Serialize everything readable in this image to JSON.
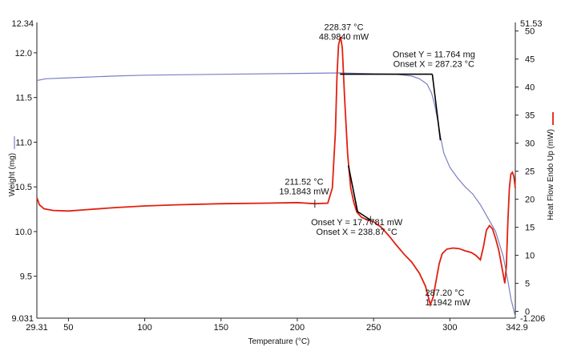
{
  "chart_data": {
    "type": "line",
    "xlabel": "Temperature (°C)",
    "xlim": [
      29.31,
      342.9
    ],
    "x_ticks": [
      50,
      100,
      150,
      200,
      250,
      300
    ],
    "x_min_label": "29.31",
    "x_max_label": "342.9",
    "left_axis": {
      "label": "Weight (mg)",
      "ylim": [
        9.031,
        12.34
      ],
      "ticks": [
        9.5,
        10.0,
        10.5,
        11.0,
        11.5,
        12.0
      ],
      "tick_labels": [
        "9.5",
        "10.0",
        "10.5",
        "11.0",
        "11.5",
        "12.0"
      ],
      "min_label": "9.031",
      "max_label": "12.34"
    },
    "right_axis": {
      "label": "Heat Flow Endo Up (mW)",
      "ylim": [
        -1.206,
        51.53
      ],
      "ticks": [
        0,
        5,
        10,
        15,
        20,
        25,
        30,
        35,
        40,
        45,
        50
      ],
      "min_label": "-1.206",
      "max_label": "51.53"
    },
    "colors": {
      "weight": "#7b7fc4",
      "heat_flow": "#e02010",
      "onset": "#000000"
    },
    "series": [
      {
        "name": "Weight",
        "axis": "left",
        "points": [
          [
            29.31,
            11.69
          ],
          [
            35,
            11.71
          ],
          [
            50,
            11.72
          ],
          [
            80,
            11.74
          ],
          [
            100,
            11.75
          ],
          [
            150,
            11.76
          ],
          [
            200,
            11.77
          ],
          [
            228,
            11.775
          ],
          [
            240,
            11.77
          ],
          [
            250,
            11.765
          ],
          [
            265,
            11.76
          ],
          [
            275,
            11.74
          ],
          [
            280,
            11.71
          ],
          [
            285,
            11.65
          ],
          [
            288,
            11.55
          ],
          [
            290,
            11.42
          ],
          [
            292,
            11.25
          ],
          [
            294,
            11.05
          ],
          [
            296,
            10.88
          ],
          [
            300,
            10.72
          ],
          [
            305,
            10.6
          ],
          [
            310,
            10.5
          ],
          [
            315,
            10.42
          ],
          [
            320,
            10.3
          ],
          [
            325,
            10.15
          ],
          [
            330,
            10.0
          ],
          [
            335,
            9.72
          ],
          [
            338,
            9.45
          ],
          [
            340,
            9.25
          ],
          [
            342.9,
            9.05
          ]
        ]
      },
      {
        "name": "Heat Flow",
        "axis": "right",
        "points": [
          [
            29.31,
            20.3
          ],
          [
            31,
            19.0
          ],
          [
            34,
            18.3
          ],
          [
            40,
            18.0
          ],
          [
            50,
            17.9
          ],
          [
            60,
            18.1
          ],
          [
            80,
            18.5
          ],
          [
            100,
            18.8
          ],
          [
            120,
            19.0
          ],
          [
            150,
            19.2
          ],
          [
            180,
            19.3
          ],
          [
            200,
            19.4
          ],
          [
            211.5,
            19.2
          ],
          [
            220,
            19.3
          ],
          [
            223,
            22.0
          ],
          [
            225,
            32.0
          ],
          [
            226,
            42.0
          ],
          [
            227,
            47.5
          ],
          [
            228.37,
            48.98
          ],
          [
            229.5,
            47.0
          ],
          [
            231,
            38.0
          ],
          [
            233,
            28.0
          ],
          [
            235,
            22.0
          ],
          [
            237,
            19.5
          ],
          [
            239,
            17.7
          ],
          [
            242,
            16.8
          ],
          [
            246,
            16.3
          ],
          [
            250,
            16.0
          ],
          [
            255,
            15.0
          ],
          [
            260,
            13.5
          ],
          [
            265,
            11.8
          ],
          [
            270,
            10.2
          ],
          [
            275,
            8.8
          ],
          [
            280,
            6.8
          ],
          [
            284,
            4.5
          ],
          [
            287.2,
            1.19
          ],
          [
            289,
            2.5
          ],
          [
            291,
            5.5
          ],
          [
            293,
            8.5
          ],
          [
            295,
            10.3
          ],
          [
            298,
            11.1
          ],
          [
            302,
            11.3
          ],
          [
            306,
            11.2
          ],
          [
            310,
            10.8
          ],
          [
            314,
            10.5
          ],
          [
            317,
            10.0
          ],
          [
            320,
            9.2
          ],
          [
            322,
            11.5
          ],
          [
            324,
            14.5
          ],
          [
            326,
            15.3
          ],
          [
            328,
            14.7
          ],
          [
            330,
            13.0
          ],
          [
            332,
            11.0
          ],
          [
            334,
            8.0
          ],
          [
            336,
            5.0
          ],
          [
            337,
            8.0
          ],
          [
            338,
            16.0
          ],
          [
            339,
            22.0
          ],
          [
            340,
            24.5
          ],
          [
            341,
            24.8
          ],
          [
            342,
            24.0
          ],
          [
            342.9,
            22.0
          ]
        ]
      }
    ],
    "onset_lines": [
      {
        "axis": "right",
        "points": [
          [
            228,
            42.3
          ],
          [
            288.5,
            42.3
          ]
        ]
      },
      {
        "axis": "right",
        "points": [
          [
            288.5,
            42.3
          ],
          [
            293.8,
            30.5
          ]
        ]
      },
      {
        "axis": "right",
        "points": [
          [
            233.5,
            26.0
          ],
          [
            239.5,
            17.8
          ]
        ]
      },
      {
        "axis": "right",
        "points": [
          [
            239.5,
            17.8
          ],
          [
            248,
            16.3
          ]
        ]
      }
    ],
    "tick_marks": [
      {
        "axis": "right",
        "x": 211.5,
        "y": 19.2
      },
      {
        "axis": "right",
        "x": 248,
        "y": 16.3
      }
    ],
    "annotations": [
      {
        "lines": [
          "228.37 °C",
          "48.9840 mW"
        ],
        "anchor": "middle",
        "x": 230.5,
        "axis": "right",
        "y": 50.2
      },
      {
        "lines": [
          "Onset Y = 11.764 mg",
          "Onset X = 287.23 °C"
        ],
        "anchor": "middle",
        "x": 289.5,
        "axis": "right",
        "y": 45.3
      },
      {
        "lines": [
          "211.52 °C",
          "19.1843 mW"
        ],
        "anchor": "middle",
        "x": 204.5,
        "axis": "right",
        "y": 22.6
      },
      {
        "lines": [
          "Onset Y = 17.7781 mW",
          "Onset X = 238.87 °C"
        ],
        "anchor": "middle",
        "x": 239.0,
        "axis": "right",
        "y": 15.4
      },
      {
        "lines": [
          "287.20 °C",
          "1.1942 mW"
        ],
        "anchor": "start",
        "x": 283.8,
        "axis": "right",
        "y": 2.8
      }
    ]
  }
}
